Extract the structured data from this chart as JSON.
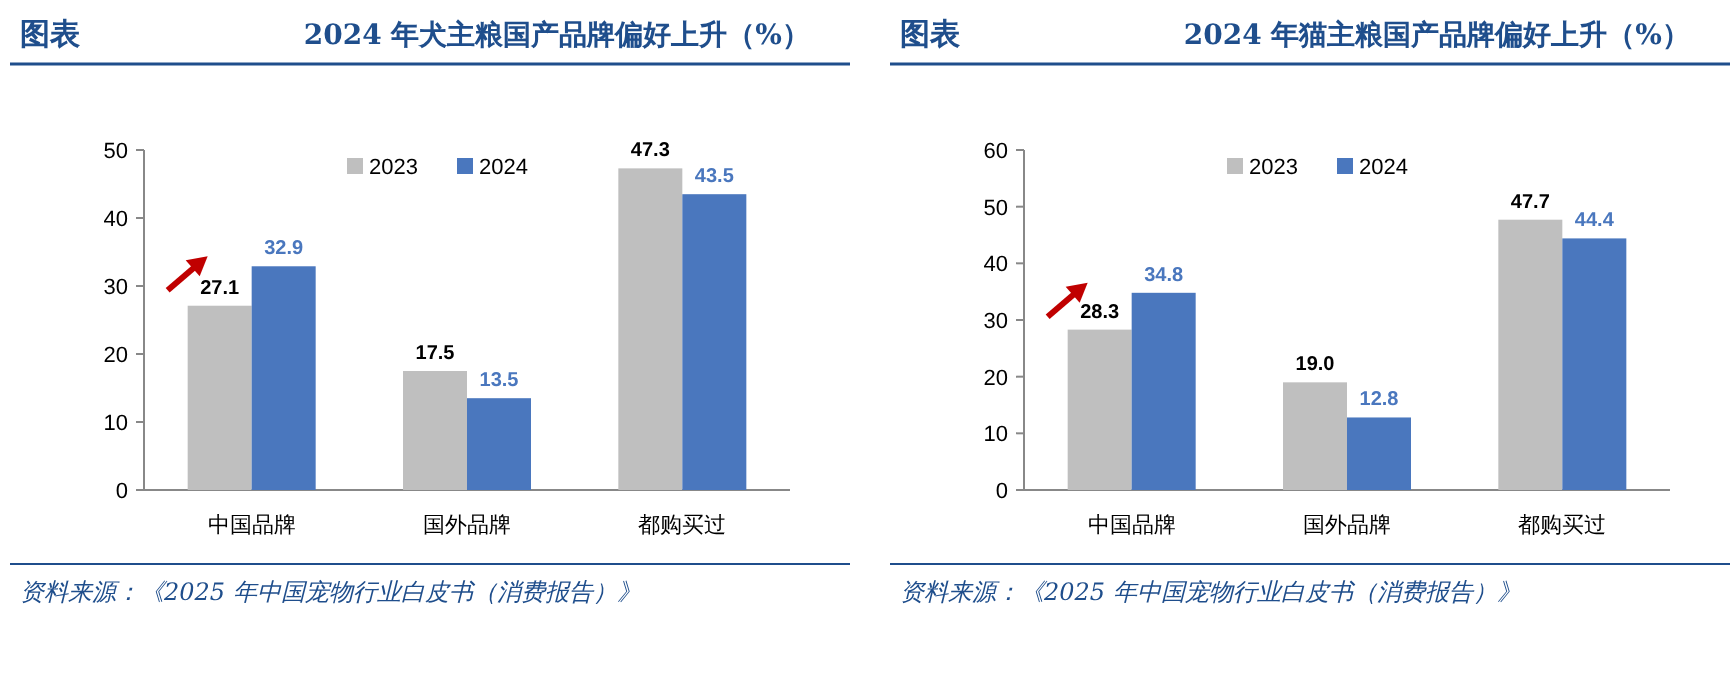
{
  "chart_data": [
    {
      "type": "bar",
      "title": "图表",
      "subtitle": "2024 年犬主粮国产品牌偏好上升（%）",
      "categories": [
        "中国品牌",
        "国外品牌",
        "都购买过"
      ],
      "series": [
        {
          "name": "2023",
          "color": "#bfbfbf",
          "values": [
            27.1,
            17.5,
            47.3
          ]
        },
        {
          "name": "2024",
          "color": "#4a77be",
          "values": [
            32.9,
            13.5,
            43.5
          ]
        }
      ],
      "ylim": [
        0,
        50
      ],
      "yticks": [
        0,
        10,
        20,
        30,
        40,
        50
      ],
      "data_labels": true,
      "legend": "top",
      "grid": false,
      "annotations": [
        "资料来源：《2025 年中国宠物行业白皮书（消费报告）》"
      ]
    },
    {
      "type": "bar",
      "title": "图表",
      "subtitle": "2024 年猫主粮国产品牌偏好上升（%）",
      "categories": [
        "中国品牌",
        "国外品牌",
        "都购买过"
      ],
      "series": [
        {
          "name": "2023",
          "color": "#bfbfbf",
          "values": [
            28.3,
            19.0,
            47.7
          ],
          "value_labels": [
            "28.3",
            "19.0",
            "47.7"
          ]
        },
        {
          "name": "2024",
          "color": "#4a77be",
          "values": [
            34.8,
            12.8,
            44.4
          ]
        }
      ],
      "ylim": [
        0,
        60
      ],
      "yticks": [
        0,
        10,
        20,
        30,
        40,
        50,
        60
      ],
      "data_labels": true,
      "legend": "top",
      "grid": false,
      "annotations": [
        "资料来源：《2025 年中国宠物行业白皮书（消费报告）》"
      ]
    }
  ]
}
